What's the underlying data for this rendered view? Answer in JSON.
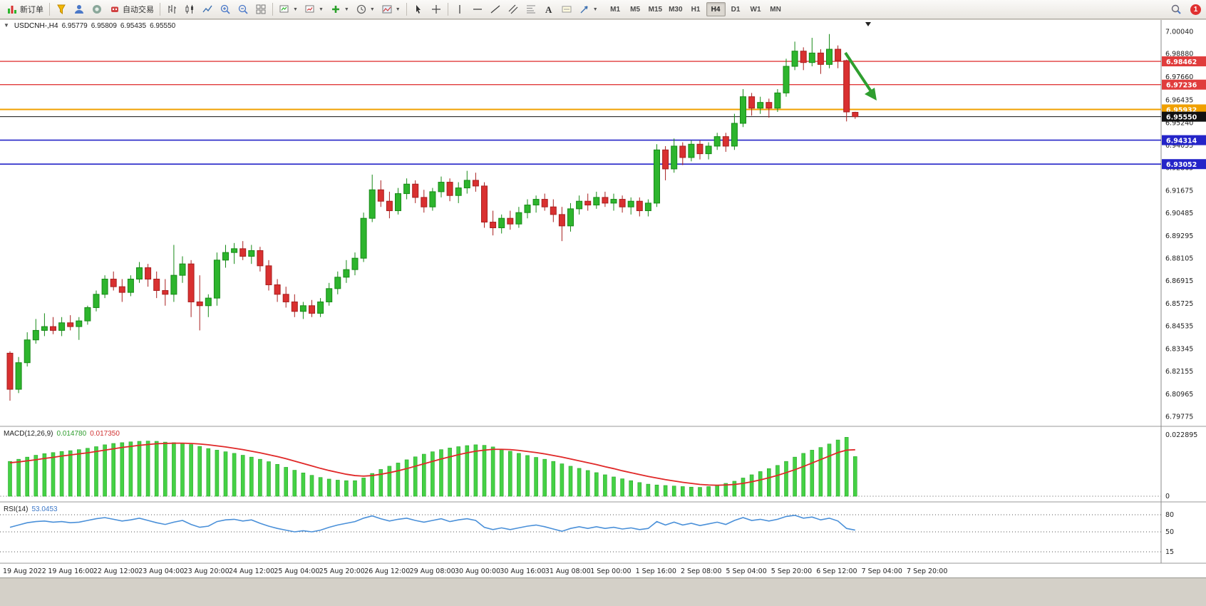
{
  "toolbar": {
    "new_order_label": "新订单",
    "auto_trading_label": "自动交易",
    "timeframes": [
      "M1",
      "M5",
      "M15",
      "M30",
      "H1",
      "H4",
      "D1",
      "W1",
      "MN"
    ],
    "active_timeframe": "H4",
    "notification_count": "1"
  },
  "header": {
    "symbol_period": "USDCNH-,H4",
    "open": "6.95779",
    "high": "6.95809",
    "low": "6.95435",
    "close": "6.95550"
  },
  "macd_panel": {
    "label": "MACD(12,26,9)",
    "value_main": "0.014780",
    "value_signal": "0.017350"
  },
  "rsi_panel": {
    "label": "RSI(14)",
    "value": "53.0453"
  },
  "chart_data": {
    "type": "candlestick",
    "symbol": "USDCNH",
    "timeframe": "H4",
    "price_axis": {
      "max": 7.0004,
      "min": 6.79775,
      "labels": [
        "7.00040",
        "6.98880",
        "6.97660",
        "6.96435",
        "6.95240",
        "6.94055",
        "6.92865",
        "6.91675",
        "6.90485",
        "6.89295",
        "6.88105",
        "6.86915",
        "6.85725",
        "6.84535",
        "6.83345",
        "6.82155",
        "6.80965",
        "6.79775"
      ]
    },
    "time_axis": [
      "19 Aug 2022",
      "19 Aug 16:00",
      "22 Aug 12:00",
      "23 Aug 04:00",
      "23 Aug 20:00",
      "24 Aug 12:00",
      "25 Aug 04:00",
      "25 Aug 20:00",
      "26 Aug 12:00",
      "29 Aug 08:00",
      "30 Aug 00:00",
      "30 Aug 16:00",
      "31 Aug 08:00",
      "1 Sep 00:00",
      "1 Sep 16:00",
      "2 Sep 08:00",
      "5 Sep 04:00",
      "5 Sep 20:00",
      "6 Sep 12:00",
      "7 Sep 04:00",
      "7 Sep 20:00"
    ],
    "levels": [
      {
        "value": 6.98462,
        "label": "6.98462",
        "color": "#e03c3c",
        "thickness": 1.4
      },
      {
        "value": 6.97236,
        "label": "6.97236",
        "color": "#e03c3c",
        "thickness": 1.4
      },
      {
        "value": 6.95932,
        "label": "6.95932",
        "color": "#f0a000",
        "thickness": 2
      },
      {
        "value": 6.9555,
        "label": "6.95550",
        "color": "#111111",
        "thickness": 1
      },
      {
        "value": 6.94314,
        "label": "6.94314",
        "color": "#2424c8",
        "thickness": 1.6
      },
      {
        "value": 6.93052,
        "label": "6.93052",
        "color": "#2424c8",
        "thickness": 1.6
      }
    ],
    "annotations": {
      "trend_arrow": {
        "direction": "down-right",
        "color": "#2f9e2f"
      }
    },
    "candles": [
      [
        6.831,
        6.832,
        6.806,
        6.812
      ],
      [
        6.812,
        6.829,
        6.81,
        6.826
      ],
      [
        6.826,
        6.842,
        6.824,
        6.838
      ],
      [
        6.838,
        6.849,
        6.836,
        6.843
      ],
      [
        6.843,
        6.852,
        6.84,
        6.845
      ],
      [
        6.845,
        6.85,
        6.841,
        6.843
      ],
      [
        6.843,
        6.85,
        6.84,
        6.847
      ],
      [
        6.847,
        6.851,
        6.843,
        6.845
      ],
      [
        6.845,
        6.85,
        6.838,
        6.848
      ],
      [
        6.848,
        6.856,
        6.846,
        6.855
      ],
      [
        6.855,
        6.864,
        6.853,
        6.862
      ],
      [
        6.862,
        6.872,
        6.86,
        6.87
      ],
      [
        6.87,
        6.874,
        6.864,
        6.866
      ],
      [
        6.866,
        6.87,
        6.858,
        6.863
      ],
      [
        6.863,
        6.872,
        6.861,
        6.87
      ],
      [
        6.87,
        6.879,
        6.868,
        6.876
      ],
      [
        6.876,
        6.878,
        6.866,
        6.87
      ],
      [
        6.87,
        6.874,
        6.86,
        6.864
      ],
      [
        6.864,
        6.87,
        6.856,
        6.862
      ],
      [
        6.862,
        6.888,
        6.858,
        6.872
      ],
      [
        6.872,
        6.882,
        6.868,
        6.878
      ],
      [
        6.878,
        6.88,
        6.85,
        6.858
      ],
      [
        6.858,
        6.872,
        6.843,
        6.856
      ],
      [
        6.856,
        6.862,
        6.85,
        6.86
      ],
      [
        6.86,
        6.884,
        6.856,
        6.88
      ],
      [
        6.88,
        6.888,
        6.876,
        6.884
      ],
      [
        6.884,
        6.889,
        6.878,
        6.886
      ],
      [
        6.886,
        6.89,
        6.88,
        6.882
      ],
      [
        6.882,
        6.888,
        6.878,
        6.885
      ],
      [
        6.885,
        6.887,
        6.874,
        6.877
      ],
      [
        6.877,
        6.88,
        6.864,
        6.867
      ],
      [
        6.867,
        6.87,
        6.858,
        6.862
      ],
      [
        6.862,
        6.866,
        6.855,
        6.858
      ],
      [
        6.858,
        6.862,
        6.85,
        6.853
      ],
      [
        6.853,
        6.858,
        6.849,
        6.856
      ],
      [
        6.856,
        6.859,
        6.85,
        6.852
      ],
      [
        6.852,
        6.86,
        6.85,
        6.858
      ],
      [
        6.858,
        6.868,
        6.856,
        6.865
      ],
      [
        6.865,
        6.874,
        6.862,
        6.871
      ],
      [
        6.871,
        6.88,
        6.868,
        6.875
      ],
      [
        6.875,
        6.884,
        6.872,
        6.881
      ],
      [
        6.881,
        6.905,
        6.879,
        6.902
      ],
      [
        6.902,
        6.925,
        6.9,
        6.917
      ],
      [
        6.917,
        6.922,
        6.908,
        6.911
      ],
      [
        6.911,
        6.916,
        6.902,
        6.906
      ],
      [
        6.906,
        6.918,
        6.904,
        6.915
      ],
      [
        6.915,
        6.923,
        6.912,
        6.92
      ],
      [
        6.92,
        6.922,
        6.91,
        6.913
      ],
      [
        6.913,
        6.917,
        6.905,
        6.908
      ],
      [
        6.908,
        6.918,
        6.906,
        6.916
      ],
      [
        6.916,
        6.924,
        6.913,
        6.921
      ],
      [
        6.921,
        6.923,
        6.911,
        6.914
      ],
      [
        6.914,
        6.921,
        6.91,
        6.918
      ],
      [
        6.918,
        6.927,
        6.915,
        6.922
      ],
      [
        6.922,
        6.926,
        6.916,
        6.919
      ],
      [
        6.919,
        6.921,
        6.897,
        6.9
      ],
      [
        6.9,
        6.906,
        6.893,
        6.897
      ],
      [
        6.897,
        6.904,
        6.894,
        6.902
      ],
      [
        6.902,
        6.906,
        6.896,
        6.899
      ],
      [
        6.899,
        6.908,
        6.897,
        6.905
      ],
      [
        6.905,
        6.912,
        6.902,
        6.909
      ],
      [
        6.909,
        6.914,
        6.905,
        6.912
      ],
      [
        6.912,
        6.915,
        6.906,
        6.908
      ],
      [
        6.908,
        6.912,
        6.9,
        6.904
      ],
      [
        6.904,
        6.908,
        6.89,
        6.898
      ],
      [
        6.898,
        6.91,
        6.895,
        6.907
      ],
      [
        6.907,
        6.914,
        6.904,
        6.911
      ],
      [
        6.911,
        6.915,
        6.906,
        6.909
      ],
      [
        6.909,
        6.916,
        6.907,
        6.913
      ],
      [
        6.913,
        6.916,
        6.908,
        6.91
      ],
      [
        6.91,
        6.915,
        6.906,
        6.912
      ],
      [
        6.912,
        6.914,
        6.905,
        6.908
      ],
      [
        6.908,
        6.913,
        6.904,
        6.911
      ],
      [
        6.911,
        6.913,
        6.903,
        6.906
      ],
      [
        6.906,
        6.912,
        6.903,
        6.91
      ],
      [
        6.91,
        6.941,
        6.908,
        6.938
      ],
      [
        6.938,
        6.94,
        6.922,
        6.928
      ],
      [
        6.928,
        6.944,
        6.926,
        6.94
      ],
      [
        6.94,
        6.942,
        6.93,
        6.934
      ],
      [
        6.934,
        6.943,
        6.932,
        6.941
      ],
      [
        6.941,
        6.943,
        6.933,
        6.936
      ],
      [
        6.936,
        6.942,
        6.933,
        6.94
      ],
      [
        6.94,
        6.947,
        6.938,
        6.945
      ],
      [
        6.945,
        6.947,
        6.937,
        6.94
      ],
      [
        6.94,
        6.957,
        6.938,
        6.952
      ],
      [
        6.952,
        6.97,
        6.95,
        6.966
      ],
      [
        6.966,
        6.968,
        6.956,
        6.96
      ],
      [
        6.96,
        6.966,
        6.957,
        6.963
      ],
      [
        6.963,
        6.965,
        6.955,
        6.96
      ],
      [
        6.96,
        6.97,
        6.958,
        6.968
      ],
      [
        6.968,
        6.986,
        6.966,
        6.982
      ],
      [
        6.982,
        6.995,
        6.98,
        6.99
      ],
      [
        6.99,
        6.992,
        6.98,
        6.984
      ],
      [
        6.984,
        6.997,
        6.982,
        6.989
      ],
      [
        6.989,
        6.991,
        6.978,
        6.983
      ],
      [
        6.983,
        6.999,
        6.981,
        6.991
      ],
      [
        6.991,
        6.993,
        6.981,
        6.985
      ],
      [
        6.985,
        6.9855,
        6.953,
        6.958
      ],
      [
        6.95779,
        6.95809,
        6.95435,
        6.9555
      ]
    ],
    "macd": {
      "label": "MACD(12,26,9)",
      "main_value": 0.01478,
      "signal_value": 0.01735,
      "axis_max": 0.022895,
      "axis_max_label": "0.022895",
      "axis_zero_label": "0",
      "histogram": [
        0.013,
        0.0138,
        0.0146,
        0.0153,
        0.0159,
        0.0163,
        0.0167,
        0.017,
        0.0174,
        0.0179,
        0.0185,
        0.0192,
        0.0197,
        0.02,
        0.0203,
        0.0205,
        0.0206,
        0.0205,
        0.0202,
        0.02,
        0.0198,
        0.0193,
        0.0186,
        0.0178,
        0.0172,
        0.0166,
        0.016,
        0.0153,
        0.0146,
        0.0138,
        0.0129,
        0.0119,
        0.0108,
        0.0097,
        0.0087,
        0.0078,
        0.007,
        0.0064,
        0.006,
        0.0058,
        0.0058,
        0.0068,
        0.0085,
        0.01,
        0.0112,
        0.0124,
        0.0136,
        0.0147,
        0.0157,
        0.0166,
        0.0174,
        0.018,
        0.0185,
        0.0189,
        0.0192,
        0.019,
        0.0184,
        0.0176,
        0.0168,
        0.016,
        0.0152,
        0.0145,
        0.0138,
        0.013,
        0.0121,
        0.0112,
        0.0104,
        0.0096,
        0.0088,
        0.008,
        0.0072,
        0.0065,
        0.0058,
        0.0051,
        0.0045,
        0.0042,
        0.004,
        0.0038,
        0.0036,
        0.0034,
        0.0033,
        0.0036,
        0.0042,
        0.0048,
        0.0056,
        0.0068,
        0.008,
        0.0092,
        0.0103,
        0.0115,
        0.013,
        0.0146,
        0.016,
        0.0172,
        0.0182,
        0.0195,
        0.021,
        0.022,
        0.0148
      ],
      "signal": [
        0.0125,
        0.0128,
        0.0132,
        0.0136,
        0.0141,
        0.0145,
        0.015,
        0.0154,
        0.0158,
        0.0162,
        0.0167,
        0.0172,
        0.0177,
        0.0182,
        0.0186,
        0.019,
        0.0193,
        0.0196,
        0.0197,
        0.0198,
        0.0198,
        0.0197,
        0.0195,
        0.0192,
        0.0188,
        0.0184,
        0.0179,
        0.0174,
        0.0168,
        0.0162,
        0.0155,
        0.0148,
        0.014,
        0.0131,
        0.0122,
        0.0113,
        0.0104,
        0.0096,
        0.0089,
        0.0082,
        0.0077,
        0.0075,
        0.0077,
        0.0082,
        0.0088,
        0.0095,
        0.0103,
        0.0112,
        0.0121,
        0.013,
        0.0139,
        0.0147,
        0.0155,
        0.0162,
        0.0168,
        0.0172,
        0.0175,
        0.0175,
        0.0174,
        0.0171,
        0.0167,
        0.0163,
        0.0158,
        0.0152,
        0.0146,
        0.0139,
        0.0132,
        0.0125,
        0.0118,
        0.011,
        0.0103,
        0.0095,
        0.0088,
        0.0081,
        0.0074,
        0.0068,
        0.0062,
        0.0057,
        0.0052,
        0.0048,
        0.0044,
        0.0042,
        0.0041,
        0.0042,
        0.0044,
        0.0048,
        0.0054,
        0.0061,
        0.0069,
        0.0078,
        0.0088,
        0.0099,
        0.0111,
        0.0124,
        0.0137,
        0.015,
        0.0163,
        0.0172,
        0.01735
      ]
    },
    "rsi": {
      "label": "RSI(14)",
      "value": 53.0453,
      "levels": [
        80,
        50,
        15
      ],
      "values": [
        58,
        62,
        66,
        68,
        69,
        67,
        68,
        66,
        67,
        70,
        73,
        75,
        72,
        69,
        71,
        74,
        70,
        66,
        63,
        67,
        70,
        63,
        58,
        60,
        68,
        71,
        72,
        69,
        71,
        65,
        60,
        56,
        53,
        50,
        52,
        50,
        53,
        58,
        62,
        65,
        68,
        74,
        78,
        73,
        69,
        72,
        74,
        70,
        67,
        70,
        73,
        68,
        71,
        73,
        70,
        58,
        54,
        57,
        54,
        57,
        60,
        62,
        59,
        55,
        51,
        56,
        59,
        56,
        59,
        56,
        58,
        55,
        57,
        54,
        56,
        68,
        62,
        67,
        62,
        65,
        61,
        64,
        67,
        63,
        70,
        75,
        70,
        72,
        69,
        72,
        77,
        79,
        74,
        76,
        71,
        74,
        69,
        56,
        53.05
      ]
    },
    "colors": {
      "bull": "#2db52d",
      "bull_edge": "#178a17",
      "bear": "#d93030",
      "bear_edge": "#a81f1f",
      "macd_hist": "#45d145",
      "macd_hist_edge": "#2aa82a",
      "macd_signal": "#e02828",
      "rsi": "#4a90d9",
      "background": "#ffffff"
    }
  }
}
